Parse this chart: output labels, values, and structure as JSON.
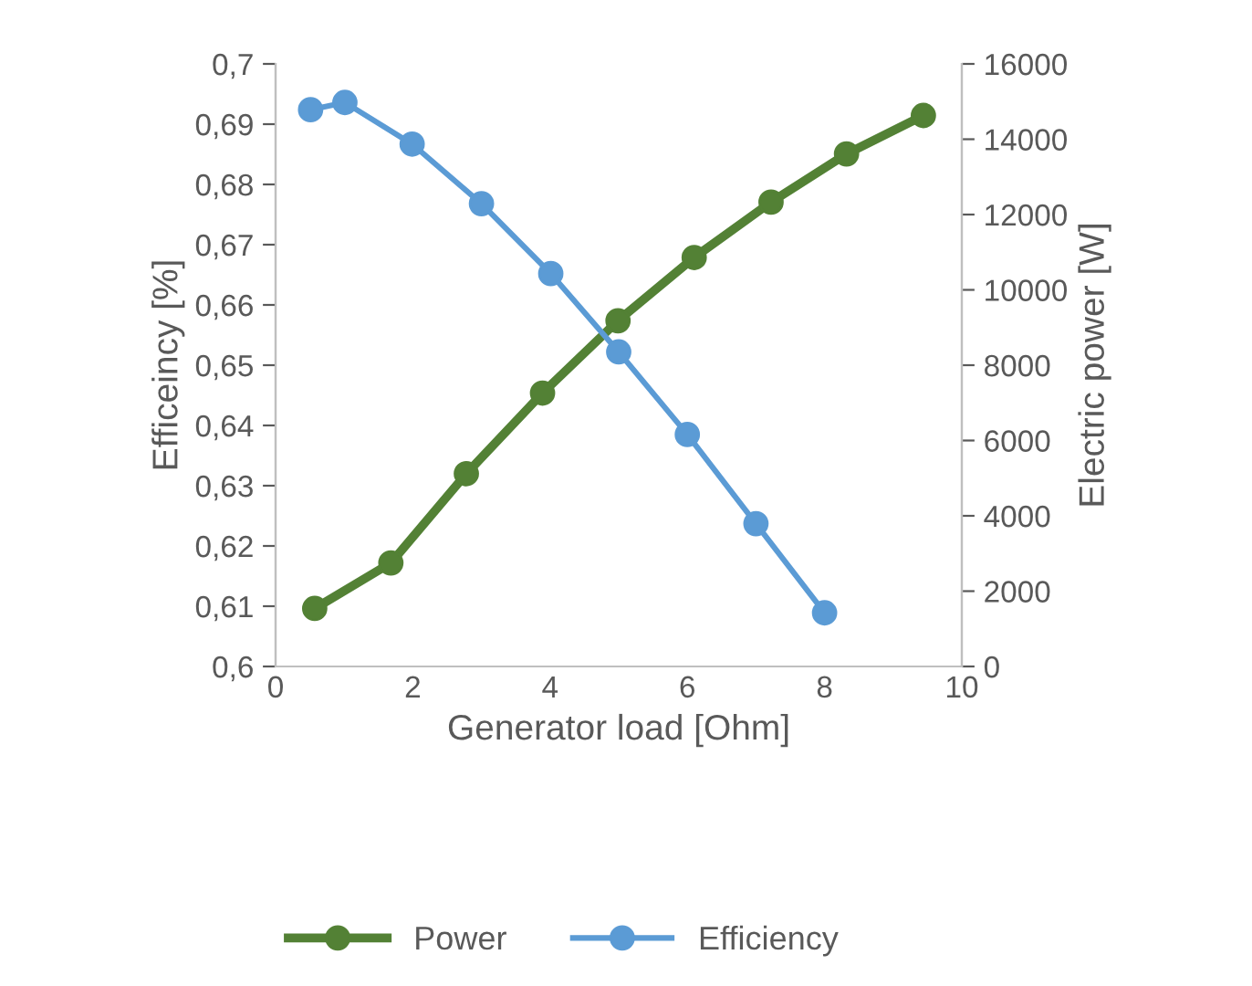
{
  "chart_data": {
    "type": "line",
    "xlabel": "Generator load [Ohm]",
    "ylabel": "Efficeincy [%]",
    "y2label": "Electric power [W]",
    "xlim": [
      0,
      10
    ],
    "xticks": [
      0,
      2,
      4,
      6,
      8,
      10
    ],
    "ylim": [
      0.6,
      0.7
    ],
    "yticks": [
      {
        "value": 0.6,
        "label": "0,6"
      },
      {
        "value": 0.61,
        "label": "0,61"
      },
      {
        "value": 0.62,
        "label": "0,62"
      },
      {
        "value": 0.63,
        "label": "0,63"
      },
      {
        "value": 0.64,
        "label": "0,64"
      },
      {
        "value": 0.65,
        "label": "0,65"
      },
      {
        "value": 0.66,
        "label": "0,66"
      },
      {
        "value": 0.67,
        "label": "0,67"
      },
      {
        "value": 0.68,
        "label": "0,68"
      },
      {
        "value": 0.69,
        "label": "0,69"
      },
      {
        "value": 0.7,
        "label": "0,7"
      }
    ],
    "y2lim": [
      0,
      16000
    ],
    "y2ticks": [
      0,
      2000,
      4000,
      6000,
      8000,
      10000,
      12000,
      14000,
      16000
    ],
    "marker": "circle",
    "line_style": "solid",
    "grid": false,
    "legend": "bottom",
    "series": [
      {
        "name": "Power",
        "color": "#538135",
        "axis": "y2",
        "x": [
          0.57,
          1.68,
          2.78,
          3.89,
          4.99,
          6.1,
          7.22,
          8.32,
          9.44
        ],
        "values": [
          1540,
          2750,
          5120,
          7260,
          9180,
          10860,
          12330,
          13610,
          14630
        ]
      },
      {
        "name": "Efficiency",
        "color": "#5b9bd5",
        "axis": "y",
        "x": [
          0.51,
          1.01,
          1.99,
          3.0,
          4.01,
          5.0,
          6.0,
          7.0,
          8.0
        ],
        "values": [
          0.6924,
          0.6936,
          0.6867,
          0.6768,
          0.6652,
          0.6522,
          0.6385,
          0.6237,
          0.6089
        ]
      }
    ]
  }
}
